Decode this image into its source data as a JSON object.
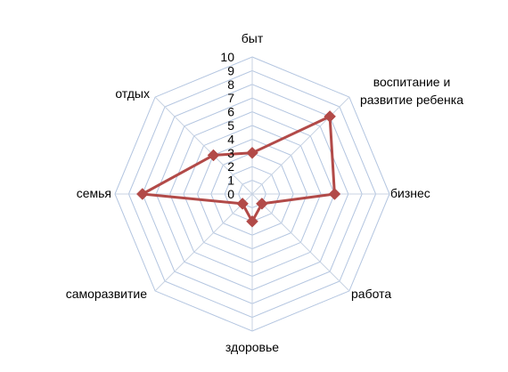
{
  "chart_data": {
    "type": "radar",
    "categories": [
      "быт",
      "воспитание  и|развитие ребенка",
      "бизнес",
      "работа",
      "здоровье",
      "саморазвитие",
      "семья",
      "отдых"
    ],
    "series": [
      {
        "name": "",
        "values": [
          3,
          8,
          6,
          1,
          2,
          1,
          8,
          4
        ]
      }
    ],
    "rlim": [
      0,
      10
    ],
    "ticks": [
      0,
      1,
      2,
      3,
      4,
      5,
      6,
      7,
      8,
      9,
      10
    ],
    "grid": true,
    "legend": "none",
    "colors": {
      "series": "#b24a48",
      "grid": "#b3c5e0",
      "axis": "#c8d3e3"
    }
  }
}
